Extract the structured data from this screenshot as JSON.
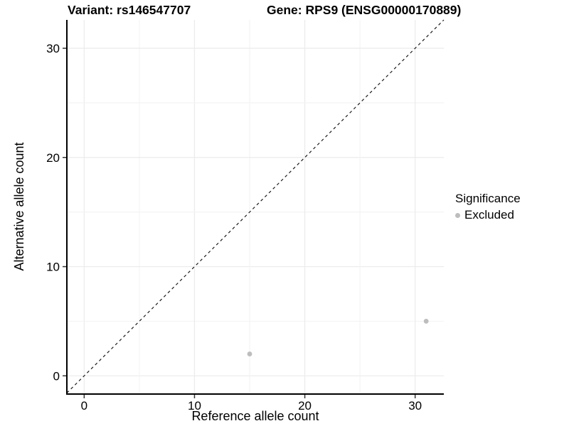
{
  "titles": {
    "variant": "Variant: rs146547707",
    "gene": "Gene: RPS9 (ENSG00000170889)"
  },
  "legend": {
    "title": "Significance",
    "items": [
      {
        "label": "Excluded",
        "color": "#bdbdbd"
      }
    ]
  },
  "chart_data": {
    "type": "scatter",
    "title": "",
    "xlabel": "Reference allele count",
    "ylabel": "Alternative allele count",
    "xlim": [
      -1.57,
      32.6
    ],
    "ylim": [
      -1.67,
      32.6
    ],
    "x_ticks": [
      0,
      10,
      20,
      30
    ],
    "y_ticks": [
      0,
      10,
      20,
      30
    ],
    "grid_lines": [
      0,
      5,
      10,
      15,
      20,
      25,
      30
    ],
    "grid_on": true,
    "legend_position": "right",
    "series": [
      {
        "name": "Excluded",
        "color": "#bdbdbd",
        "points": [
          {
            "x": 15,
            "y": 2
          },
          {
            "x": 31,
            "y": 5
          }
        ]
      }
    ],
    "reference_line": {
      "type": "identity y = x",
      "style": "dashed",
      "color": "#1a1a1a"
    },
    "colors": {
      "grid_major": "#ebebeb",
      "grid_minor": "#f4f4f4",
      "axis_line": "#000000",
      "tick": "#333333",
      "text": "#000000"
    }
  }
}
